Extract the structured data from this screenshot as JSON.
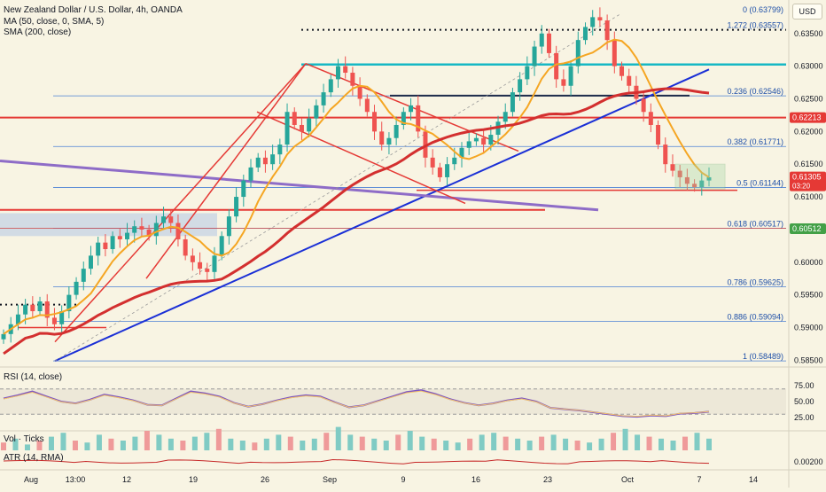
{
  "header": {
    "title": "New Zealand Dollar / U.S. Dollar, 4h, OANDA",
    "ma_legend": "MA (50, close, 0, SMA, 5)",
    "sma_legend": "SMA (200, close)",
    "currency": "USD"
  },
  "panes": {
    "rsi_label": "RSI (14, close)",
    "vol_label": "Vol · Ticks",
    "atr_label": "ATR (14, RMA)"
  },
  "chart_data": {
    "type": "candlestick",
    "symbol": "NZDUSD",
    "timeframe": "4h",
    "ylim": [
      0.5845,
      0.6385
    ],
    "price_ticks": [
      "0.63500",
      "0.63000",
      "0.62500",
      "0.62000",
      "0.61500",
      "0.61000",
      "0.60000",
      "0.59500",
      "0.59000",
      "0.58500"
    ],
    "x_ticks": [
      "Aug",
      "13:00",
      "12",
      "19",
      "26",
      "Sep",
      "9",
      "16",
      "23",
      "Oct",
      "7",
      "14"
    ],
    "fib_levels": [
      {
        "label": "0 (0.63799)",
        "value": 0.63799
      },
      {
        "label": "1.272 (0.63557)",
        "value": 0.63557
      },
      {
        "label": "0.236 (0.62546)",
        "value": 0.62546
      },
      {
        "label": "0.382 (0.61771)",
        "value": 0.61771
      },
      {
        "label": "0.5 (0.61144)",
        "value": 0.61144
      },
      {
        "label": "0.618 (0.60517)",
        "value": 0.60517
      },
      {
        "label": "0.786 (0.59625)",
        "value": 0.59625
      },
      {
        "label": "0.886 (0.59094)",
        "value": 0.59094
      },
      {
        "label": "1 (0.58489)",
        "value": 0.58489
      }
    ],
    "price_badges": [
      {
        "label": "0.62213",
        "value": 0.62213,
        "color": "#e53935"
      },
      {
        "label": "0.61305",
        "value": 0.61305,
        "color": "#e53935",
        "sub": "03:20"
      },
      {
        "label": "0.60512",
        "value": 0.60512,
        "color": "#43a047"
      }
    ],
    "close_points": [
      0.589,
      0.5905,
      0.592,
      0.5935,
      0.5925,
      0.594,
      0.5915,
      0.5905,
      0.5925,
      0.595,
      0.597,
      0.599,
      0.601,
      0.603,
      0.602,
      0.604,
      0.6035,
      0.6045,
      0.6055,
      0.605,
      0.604,
      0.606,
      0.607,
      0.606,
      0.6035,
      0.601,
      0.6,
      0.599,
      0.5985,
      0.601,
      0.604,
      0.607,
      0.61,
      0.6125,
      0.6145,
      0.616,
      0.615,
      0.6165,
      0.618,
      0.623,
      0.621,
      0.62,
      0.622,
      0.624,
      0.626,
      0.628,
      0.63,
      0.629,
      0.627,
      0.625,
      0.623,
      0.62,
      0.618,
      0.619,
      0.621,
      0.623,
      0.624,
      0.62,
      0.616,
      0.6145,
      0.613,
      0.615,
      0.616,
      0.6175,
      0.6185,
      0.619,
      0.618,
      0.6195,
      0.6215,
      0.623,
      0.626,
      0.628,
      0.63,
      0.633,
      0.635,
      0.632,
      0.628,
      0.627,
      0.63,
      0.634,
      0.636,
      0.6375,
      0.637,
      0.634,
      0.63,
      0.6285,
      0.627,
      0.625,
      0.623,
      0.621,
      0.618,
      0.615,
      0.614,
      0.613,
      0.612,
      0.6115,
      0.6125,
      0.613
    ],
    "rsi_ticks": [
      "75.00",
      "50.00",
      "25.00"
    ],
    "rsi_values": [
      55,
      60,
      66,
      58,
      50,
      47,
      53,
      61,
      57,
      52,
      45,
      44,
      55,
      66,
      63,
      58,
      48,
      42,
      46,
      52,
      57,
      60,
      58,
      49,
      41,
      44,
      51,
      58,
      65,
      68,
      62,
      54,
      48,
      44,
      47,
      52,
      55,
      50,
      40,
      38,
      36,
      33,
      30,
      27,
      26,
      28,
      27,
      31,
      32,
      34
    ],
    "atr_tick": "0.00200",
    "volume_values": [
      4,
      6,
      3,
      5,
      7,
      9,
      5,
      4,
      8,
      6,
      5,
      7,
      10,
      8,
      6,
      5,
      7,
      9,
      11,
      6,
      5,
      4,
      6,
      8,
      7,
      5,
      6,
      9,
      12,
      8,
      7,
      6,
      5,
      8,
      10,
      7,
      6,
      5,
      4,
      6,
      8,
      9,
      7,
      6,
      5,
      7,
      8,
      6,
      5,
      4,
      6,
      9,
      11,
      8,
      7,
      6,
      5,
      7,
      9,
      6
    ]
  }
}
